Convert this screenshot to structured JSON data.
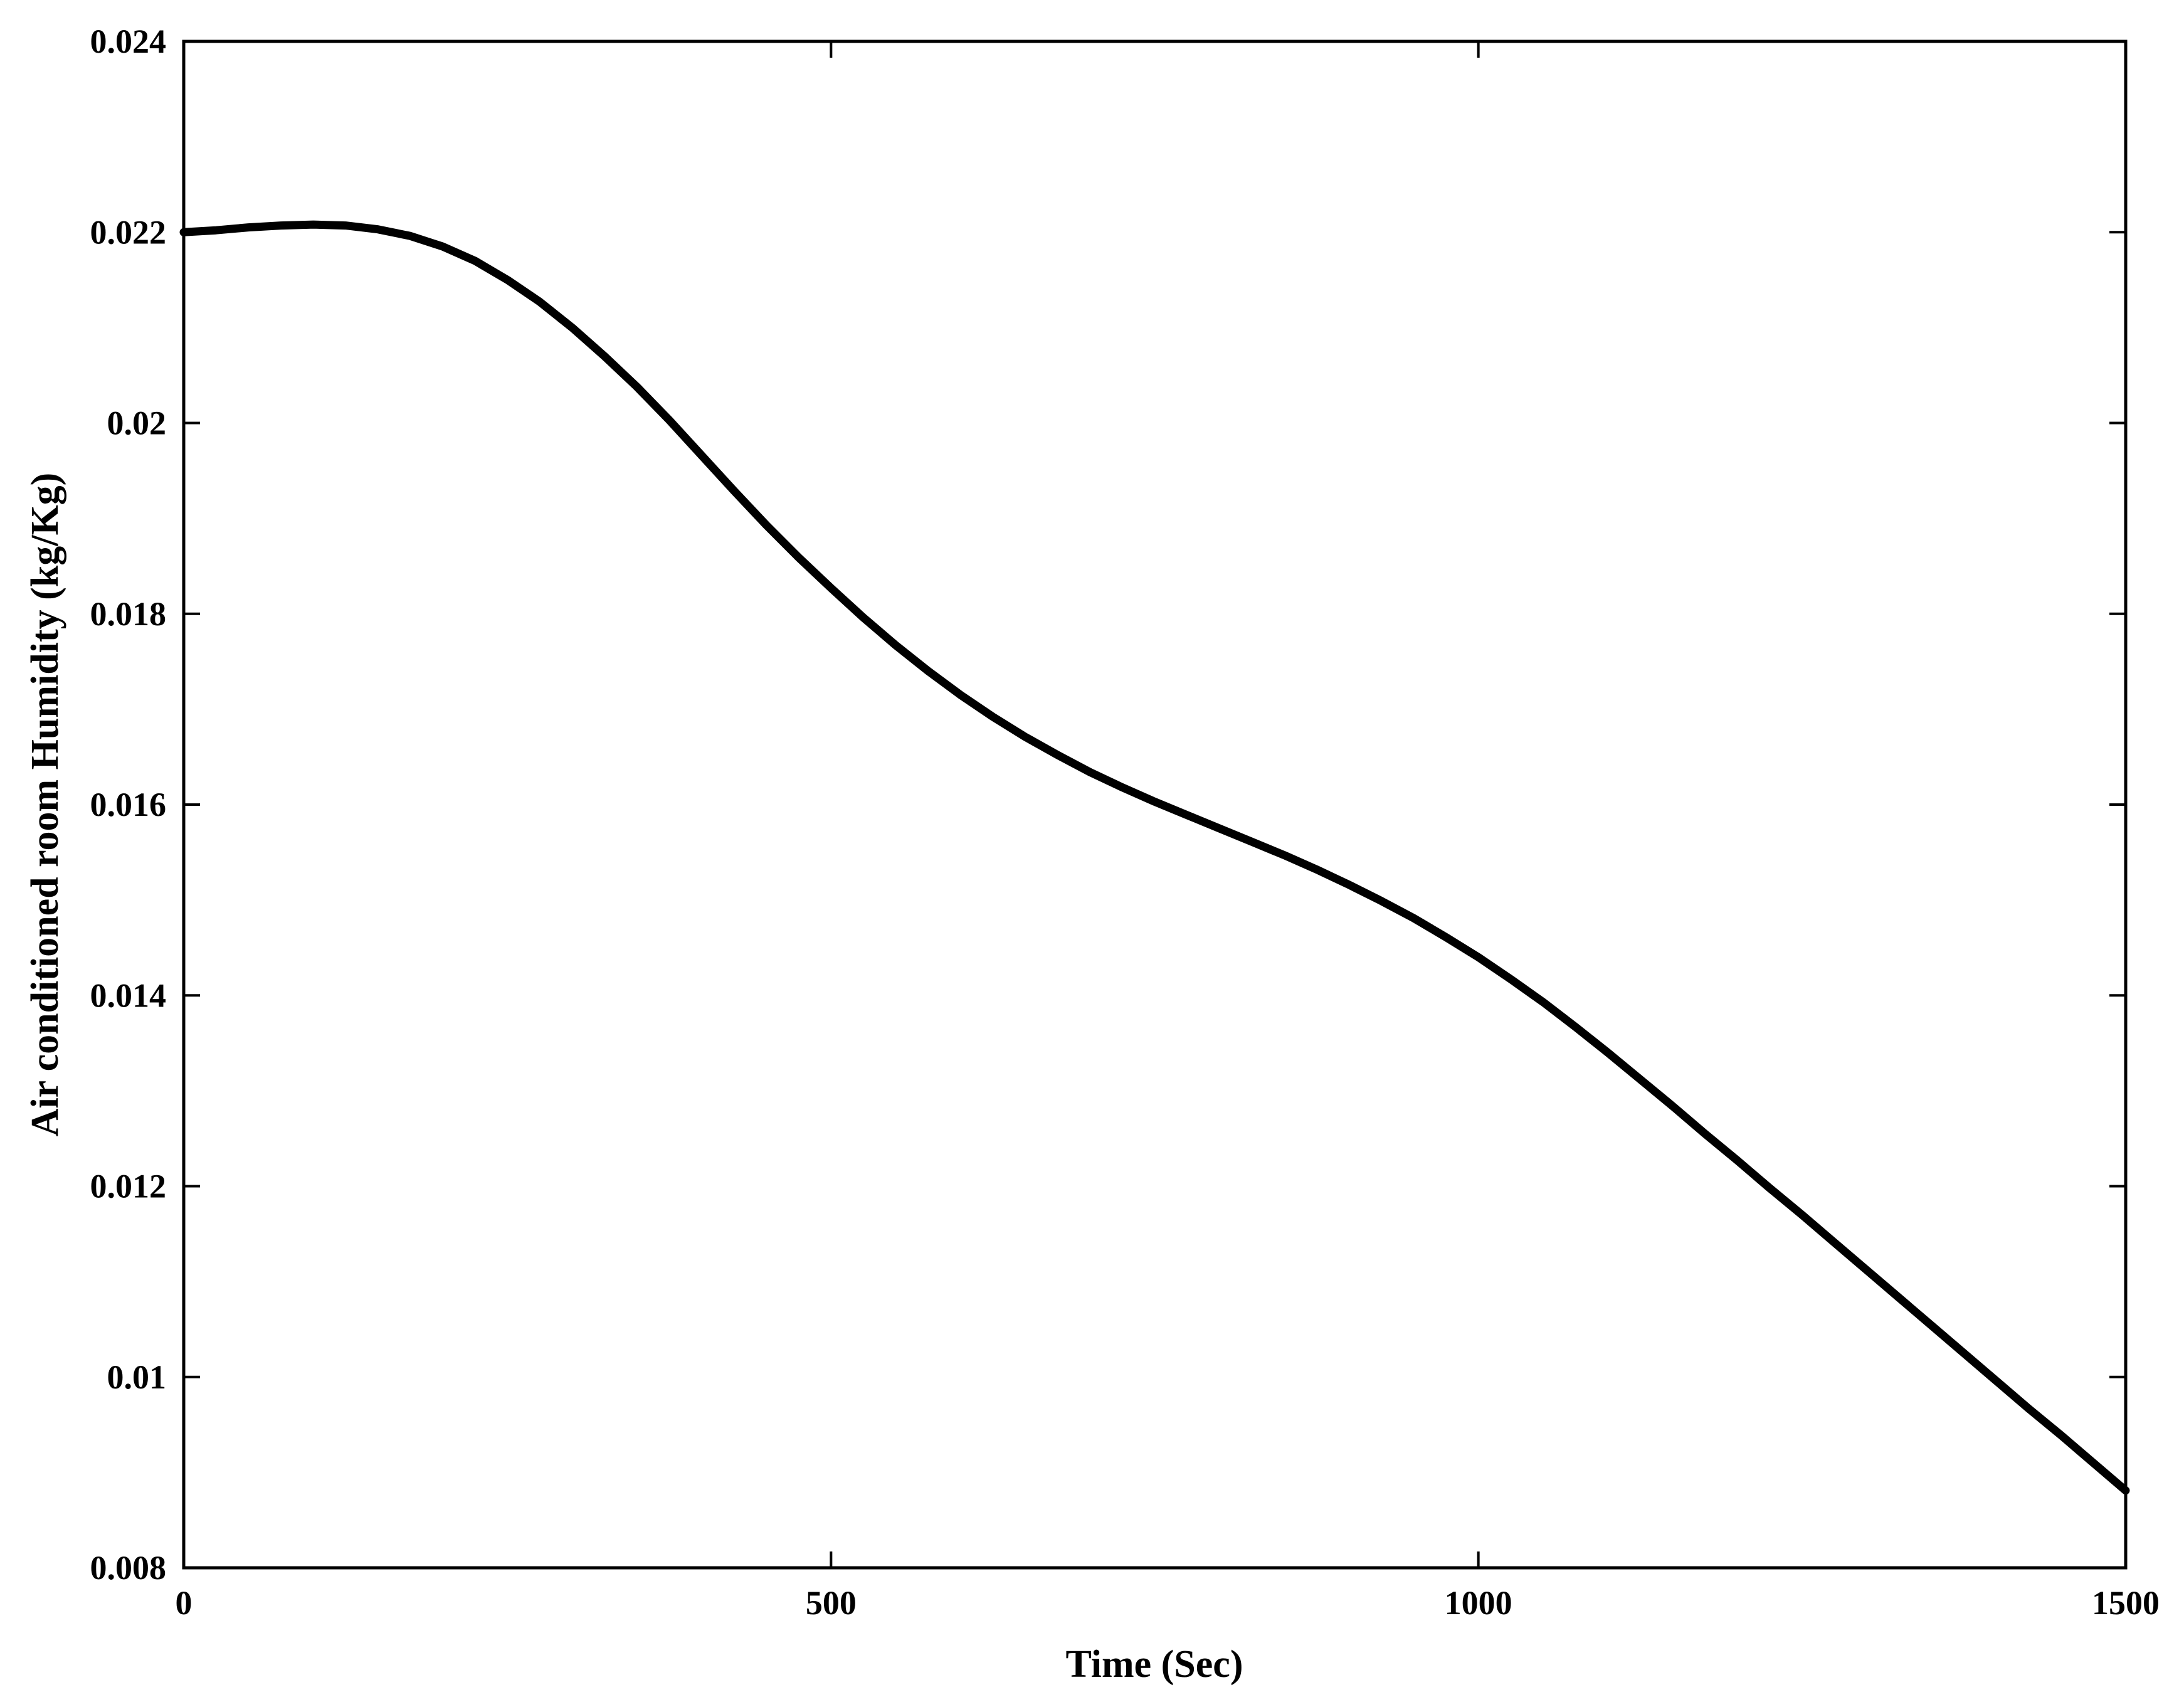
{
  "chart_data": {
    "type": "line",
    "title": "",
    "xlabel": "Time (Sec)",
    "ylabel": "Air conditioned room Humidity (kg/Kg)",
    "xlim": [
      0,
      1500
    ],
    "ylim": [
      0.008,
      0.024
    ],
    "x_ticks": [
      "0",
      "500",
      "1000",
      "1500"
    ],
    "x_tick_values": [
      0,
      500,
      1000,
      1500
    ],
    "y_ticks": [
      "0.008",
      "0.01",
      "0.012",
      "0.014",
      "0.016",
      "0.018",
      "0.02",
      "0.022",
      "0.024"
    ],
    "y_tick_values": [
      0.008,
      0.01,
      0.012,
      0.014,
      0.016,
      0.018,
      0.02,
      0.022,
      0.024
    ],
    "grid": false,
    "legend": "none",
    "line_color": "#000000",
    "series": [
      {
        "x": [
          0,
          25,
          50,
          75,
          100,
          125,
          150,
          175,
          200,
          225,
          250,
          275,
          300,
          325,
          350,
          375,
          400,
          425,
          450,
          475,
          500,
          525,
          550,
          575,
          600,
          625,
          650,
          675,
          700,
          725,
          750,
          775,
          800,
          825,
          850,
          875,
          900,
          925,
          950,
          975,
          1000,
          1025,
          1050,
          1075,
          1100,
          1125,
          1150,
          1175,
          1200,
          1225,
          1250,
          1275,
          1300,
          1325,
          1350,
          1375,
          1400,
          1425,
          1450,
          1475,
          1500
        ],
        "values": [
          0.022,
          0.02202,
          0.02205,
          0.02207,
          0.02208,
          0.02207,
          0.02203,
          0.02196,
          0.02185,
          0.0217,
          0.0215,
          0.02127,
          0.021,
          0.0207,
          0.02038,
          0.02003,
          0.01966,
          0.01929,
          0.01893,
          0.01859,
          0.01827,
          0.01796,
          0.01767,
          0.0174,
          0.01715,
          0.01692,
          0.01671,
          0.01652,
          0.01634,
          0.01618,
          0.01603,
          0.01589,
          0.01575,
          0.01561,
          0.01547,
          0.01532,
          0.01516,
          0.01499,
          0.01481,
          0.01461,
          0.0144,
          0.01417,
          0.01393,
          0.01367,
          0.0134,
          0.01312,
          0.01284,
          0.01255,
          0.01227,
          0.01198,
          0.0117,
          0.01141,
          0.01112,
          0.01083,
          0.01054,
          0.01025,
          0.00996,
          0.00967,
          0.00939,
          0.0091,
          0.00881
        ]
      }
    ]
  }
}
